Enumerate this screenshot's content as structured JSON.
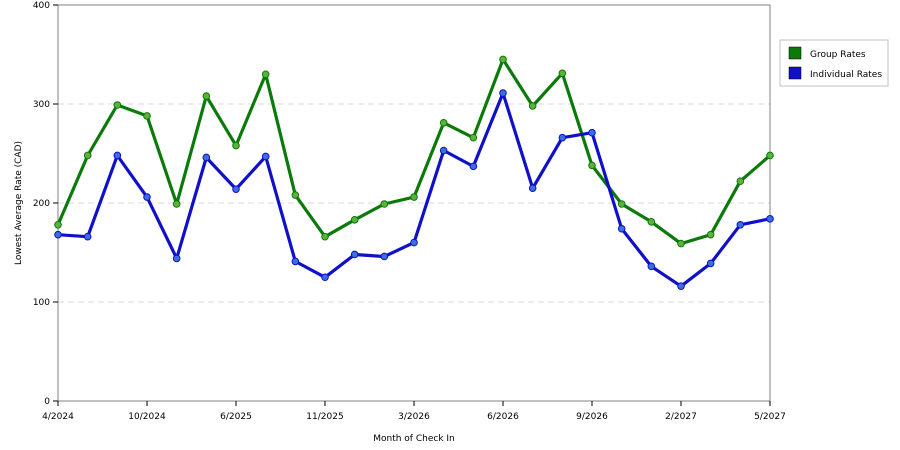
{
  "chart_data": {
    "type": "line",
    "xlabel": "Month of Check In",
    "ylabel": "Lowest Average Rate (CAD)",
    "ylim": [
      0,
      400
    ],
    "yticks": [
      "0",
      "100",
      "200",
      "300",
      "400"
    ],
    "x_tick_labels": [
      "4/2024",
      "10/2024",
      "6/2025",
      "11/2025",
      "3/2026",
      "6/2026",
      "9/2026",
      "2/2027",
      "5/2027"
    ],
    "x_tick_indices": [
      0,
      3,
      6,
      9,
      12,
      15,
      18,
      21,
      24
    ],
    "grid": "horizontal dashed",
    "legend_position": "right",
    "series": [
      {
        "name": "Group Rates",
        "color": "#0b7a0b",
        "marker_color": "#5db33a",
        "values": [
          178,
          248,
          299,
          288,
          199,
          308,
          258,
          330,
          208,
          166,
          183,
          199,
          206,
          281,
          266,
          345,
          298,
          331,
          238,
          199,
          181,
          159,
          168,
          222,
          248
        ]
      },
      {
        "name": "Individual Rates",
        "color": "#1010c8",
        "marker_color": "#3a6fe0",
        "values": [
          168,
          166,
          248,
          206,
          144,
          246,
          214,
          247,
          141,
          125,
          148,
          146,
          160,
          253,
          237,
          311,
          215,
          266,
          271,
          174,
          136,
          116,
          139,
          178,
          184
        ]
      }
    ]
  }
}
